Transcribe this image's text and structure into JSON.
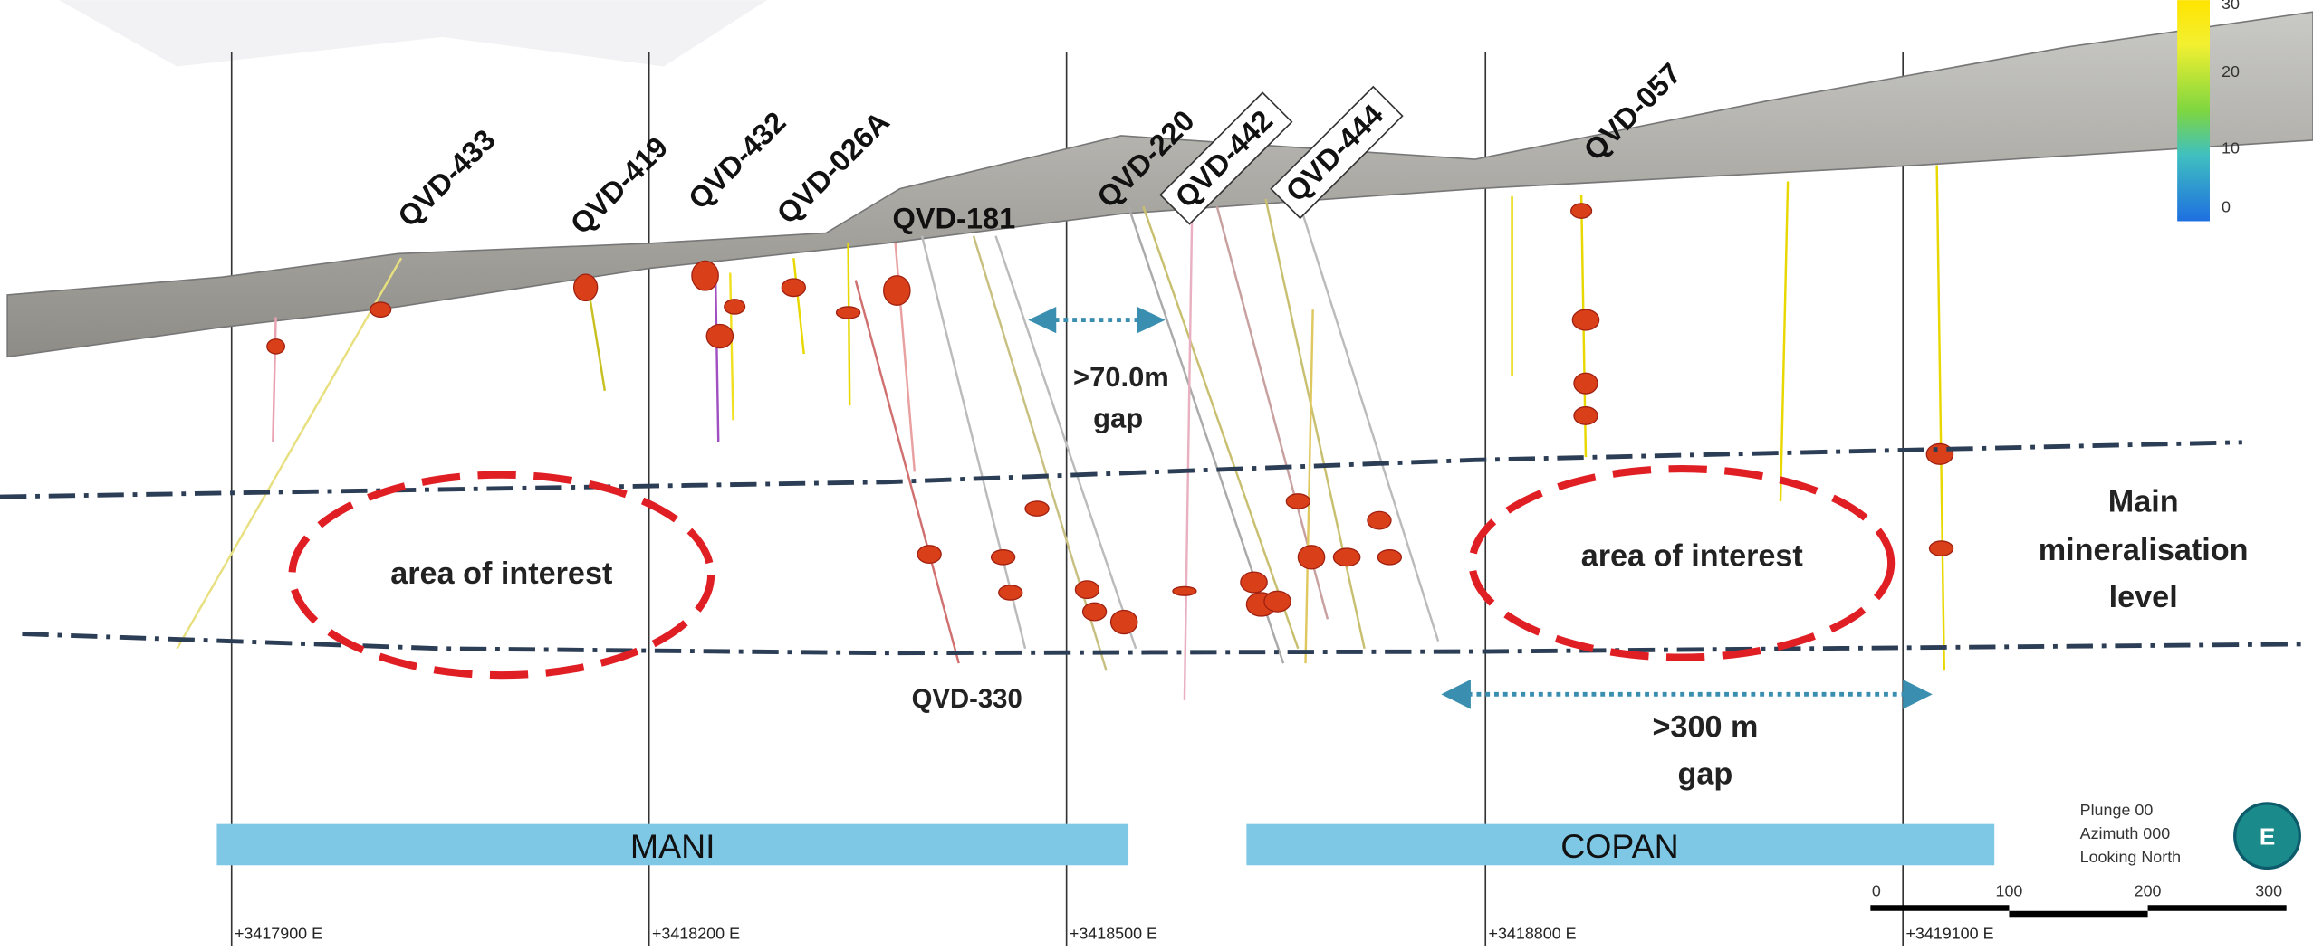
{
  "holes": [
    "QVD-433",
    "QVD-419",
    "QVD-432",
    "QVD-026A",
    "QVD-181",
    "QVD-220",
    "QVD-442",
    "QVD-444",
    "QVD-057",
    "QVD-330"
  ],
  "annotations": {
    "gap_small": [
      ">70.0m",
      "gap"
    ],
    "gap_large": [
      ">300 m",
      "gap"
    ],
    "interest": [
      "area of interest",
      "area of interest"
    ],
    "level": [
      "Main",
      "mineralisation",
      "level"
    ]
  },
  "zones": [
    "MANI",
    "COPAN"
  ],
  "eastings": [
    "+3417900 E",
    "+3418200 E",
    "+3418500 E",
    "+3418800 E",
    "+3419100 E"
  ],
  "view": [
    "Plunge 00",
    "Azimuth 000",
    "Looking North"
  ],
  "scale": [
    0,
    100,
    200,
    300
  ],
  "legend": [
    30,
    20,
    10,
    0
  ]
}
